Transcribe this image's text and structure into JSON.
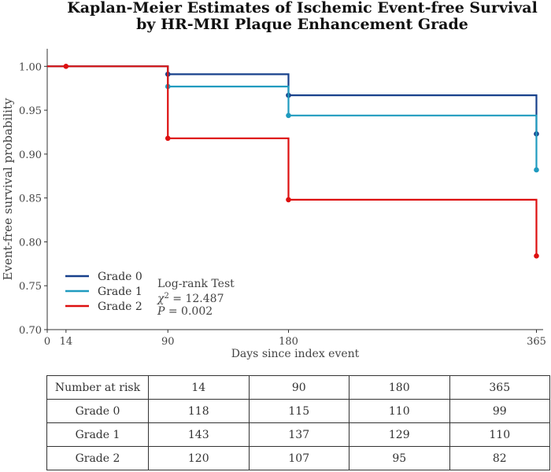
{
  "title_line1": "Kaplan-Meier Estimates of Ischemic Event-free Survival",
  "title_line2": "by HR-MRI Plaque Enhancement Grade",
  "chart_data": {
    "type": "line",
    "subtype": "kaplan-meier step",
    "xlabel": "Days since index event",
    "ylabel": "Event-free survival probability",
    "xlim": [
      0,
      370
    ],
    "ylim": [
      0.7,
      1.02
    ],
    "xticks": [
      0,
      14,
      90,
      180,
      365
    ],
    "yticks": [
      0.7,
      0.75,
      0.8,
      0.85,
      0.9,
      0.95,
      1.0
    ],
    "grid": false,
    "legend_position": "lower-left",
    "series": [
      {
        "name": "Grade 0",
        "color": "#17408b",
        "x": [
          0,
          90,
          180,
          365
        ],
        "y": [
          1.0,
          0.991,
          0.967,
          0.923
        ],
        "markers": [
          [
            90,
            0.991
          ],
          [
            180,
            0.967
          ],
          [
            365,
            0.923
          ]
        ]
      },
      {
        "name": "Grade 1",
        "color": "#1f9bbf",
        "x": [
          0,
          90,
          180,
          365
        ],
        "y": [
          1.0,
          0.977,
          0.944,
          0.882
        ],
        "markers": [
          [
            90,
            0.977
          ],
          [
            180,
            0.944
          ],
          [
            365,
            0.882
          ]
        ]
      },
      {
        "name": "Grade 2",
        "color": "#dd1010",
        "x": [
          0,
          90,
          180,
          365
        ],
        "y": [
          1.0,
          0.918,
          0.848,
          0.784
        ],
        "markers": [
          [
            14,
            1.0
          ],
          [
            90,
            0.918
          ],
          [
            180,
            0.848
          ],
          [
            365,
            0.784
          ]
        ]
      }
    ],
    "annotations": {
      "test_name": "Log-rank Test",
      "chi2_label": "χ",
      "chi2_sup": "2",
      "chi2_value": " = 12.487",
      "p_label": "P",
      "p_value": " = 0.002"
    }
  },
  "risk_table": {
    "header": [
      "Number at risk",
      "14",
      "90",
      "180",
      "365"
    ],
    "rows": [
      [
        "Grade 0",
        "118",
        "115",
        "110",
        "99"
      ],
      [
        "Grade 1",
        "143",
        "137",
        "129",
        "110"
      ],
      [
        "Grade 2",
        "120",
        "107",
        "95",
        "82"
      ]
    ]
  }
}
